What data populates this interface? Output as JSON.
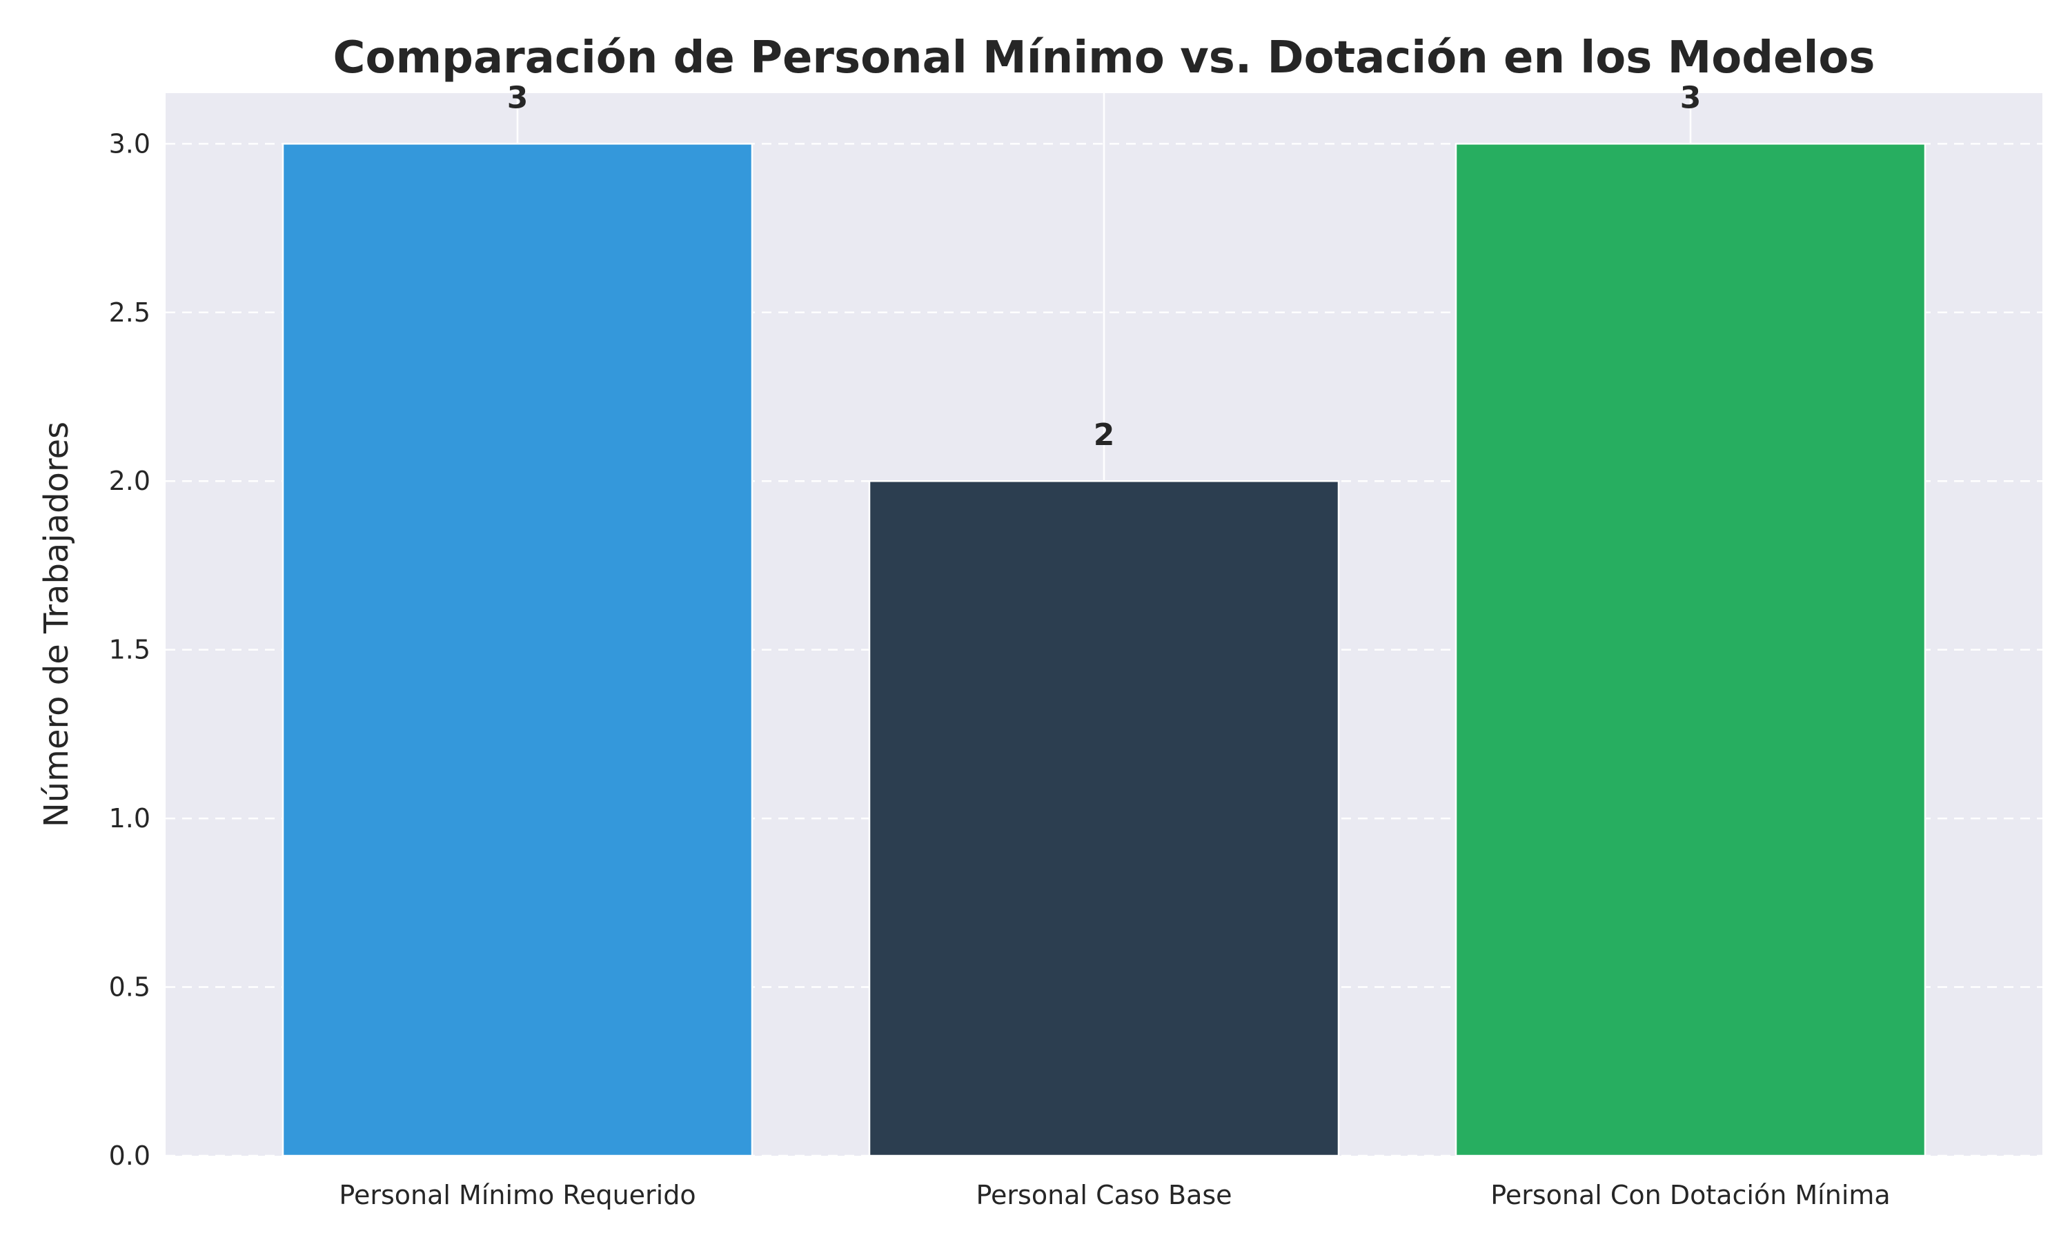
{
  "chart_data": {
    "type": "bar",
    "title": "Comparación de Personal Mínimo vs. Dotación en los Modelos",
    "xlabel": "",
    "ylabel": "Número de Trabajadores",
    "categories": [
      "Personal Mínimo Requerido",
      "Personal Caso Base",
      "Personal Con Dotación Mínima"
    ],
    "values": [
      3,
      2,
      3
    ],
    "data_labels": [
      "3",
      "2",
      "3"
    ],
    "colors": [
      "#3498db",
      "#2c3e50",
      "#27ae60"
    ],
    "ylim": [
      0,
      3.15
    ],
    "yticks": [
      0.0,
      0.5,
      1.0,
      1.5,
      2.0,
      2.5,
      3.0
    ],
    "ytick_labels": [
      "0.0",
      "0.5",
      "1.0",
      "1.5",
      "2.0",
      "2.5",
      "3.0"
    ],
    "grid": true,
    "grid_axis": "y",
    "grid_style": "dashed",
    "background_color": "#eaeaf2",
    "legend": "none"
  }
}
